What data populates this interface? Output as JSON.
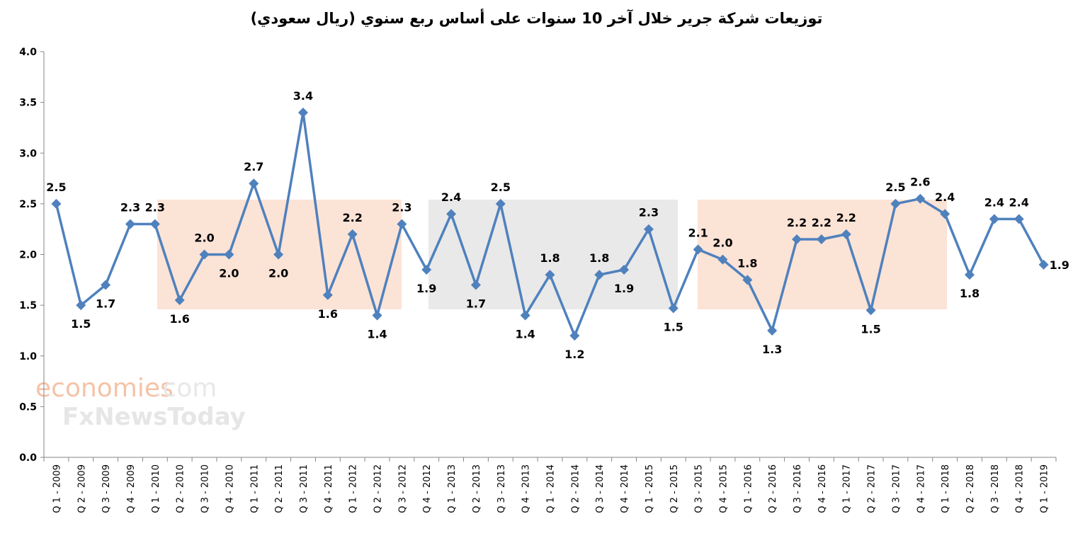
{
  "chart_data": {
    "type": "line",
    "title": "توزيعات شركة جرير خلال آخر 10 سنوات على أساس ربع سنوي (ريال سعودي)",
    "xlabel": "",
    "ylabel": "",
    "ylim": [
      0,
      4
    ],
    "yticks": [
      "0.0",
      "0.5",
      "1.0",
      "1.5",
      "2.0",
      "2.5",
      "3.0",
      "3.5",
      "4.0"
    ],
    "grid": false,
    "legend": "none",
    "line_color": "#4f81bd",
    "categories": [
      "Q 1 - 2009",
      "Q 2 - 2009",
      "Q 3 - 2009",
      "Q 4 - 2009",
      "Q 1 - 2010",
      "Q 2 - 2010",
      "Q 3 - 2010",
      "Q 4 - 2010",
      "Q 1 - 2011",
      "Q 2 - 2011",
      "Q 3 - 2011",
      "Q 4 - 2011",
      "Q 1 - 2012",
      "Q 2 - 2012",
      "Q 3 - 2012",
      "Q 4 - 2012",
      "Q 1 - 2013",
      "Q 2 - 2013",
      "Q 3 - 2013",
      "Q 4 - 2013",
      "Q 1 - 2014",
      "Q 2 - 2014",
      "Q 3 - 2014",
      "Q 4 - 2014",
      "Q 1 - 2015",
      "Q 2 - 2015",
      "Q 3 - 2015",
      "Q 4 - 2015",
      "Q 1 - 2016",
      "Q 2 - 2016",
      "Q 3 - 2016",
      "Q 4 - 2016",
      "Q 1 - 2017",
      "Q 2 - 2017",
      "Q 3 - 2017",
      "Q 4 - 2017",
      "Q 1 - 2018",
      "Q 2 - 2018",
      "Q 3 - 2018",
      "Q 4 - 2018",
      "Q 1 - 2019"
    ],
    "values": [
      2.5,
      1.5,
      1.7,
      2.3,
      2.3,
      1.55,
      2.0,
      2.0,
      2.7,
      2.0,
      3.4,
      1.6,
      2.2,
      1.4,
      2.3,
      1.85,
      2.4,
      1.7,
      2.5,
      1.4,
      1.8,
      1.2,
      1.8,
      1.85,
      2.25,
      1.47,
      2.05,
      1.95,
      1.75,
      1.25,
      2.15,
      2.15,
      2.2,
      1.45,
      2.5,
      2.55,
      2.4,
      1.8,
      2.35,
      2.35,
      1.9
    ],
    "data_labels": [
      "2.5",
      "1.5",
      "1.7",
      "2.3",
      "2.3",
      "1.6",
      "2.0",
      "2.0",
      "2.7",
      "2.0",
      "3.4",
      "1.6",
      "2.2",
      "1.4",
      "2.3",
      "1.9",
      "2.4",
      "1.7",
      "2.5",
      "1.4",
      "1.8",
      "1.2",
      "1.8",
      "1.9",
      "2.3",
      "1.5",
      "2.1",
      "2.0",
      "1.8",
      "1.3",
      "2.2",
      "2.2",
      "2.2",
      "1.5",
      "2.5",
      "2.6",
      "2.4",
      "1.8",
      "2.4",
      "2.4",
      "1.9"
    ],
    "label_pos": [
      "a",
      "b",
      "b",
      "a",
      "a",
      "b",
      "a",
      "b",
      "a",
      "b",
      "a",
      "b",
      "a",
      "b",
      "a",
      "b",
      "a",
      "b",
      "a",
      "b",
      "a",
      "b",
      "a",
      "b",
      "a",
      "b",
      "a",
      "a",
      "a",
      "b",
      "a",
      "a",
      "a",
      "b",
      "a",
      "a",
      "a",
      "b",
      "a",
      "a",
      "r"
    ]
  },
  "watermark": {
    "brand": "economies",
    "suffix": ".com",
    "sub": "FxNewsToday"
  }
}
